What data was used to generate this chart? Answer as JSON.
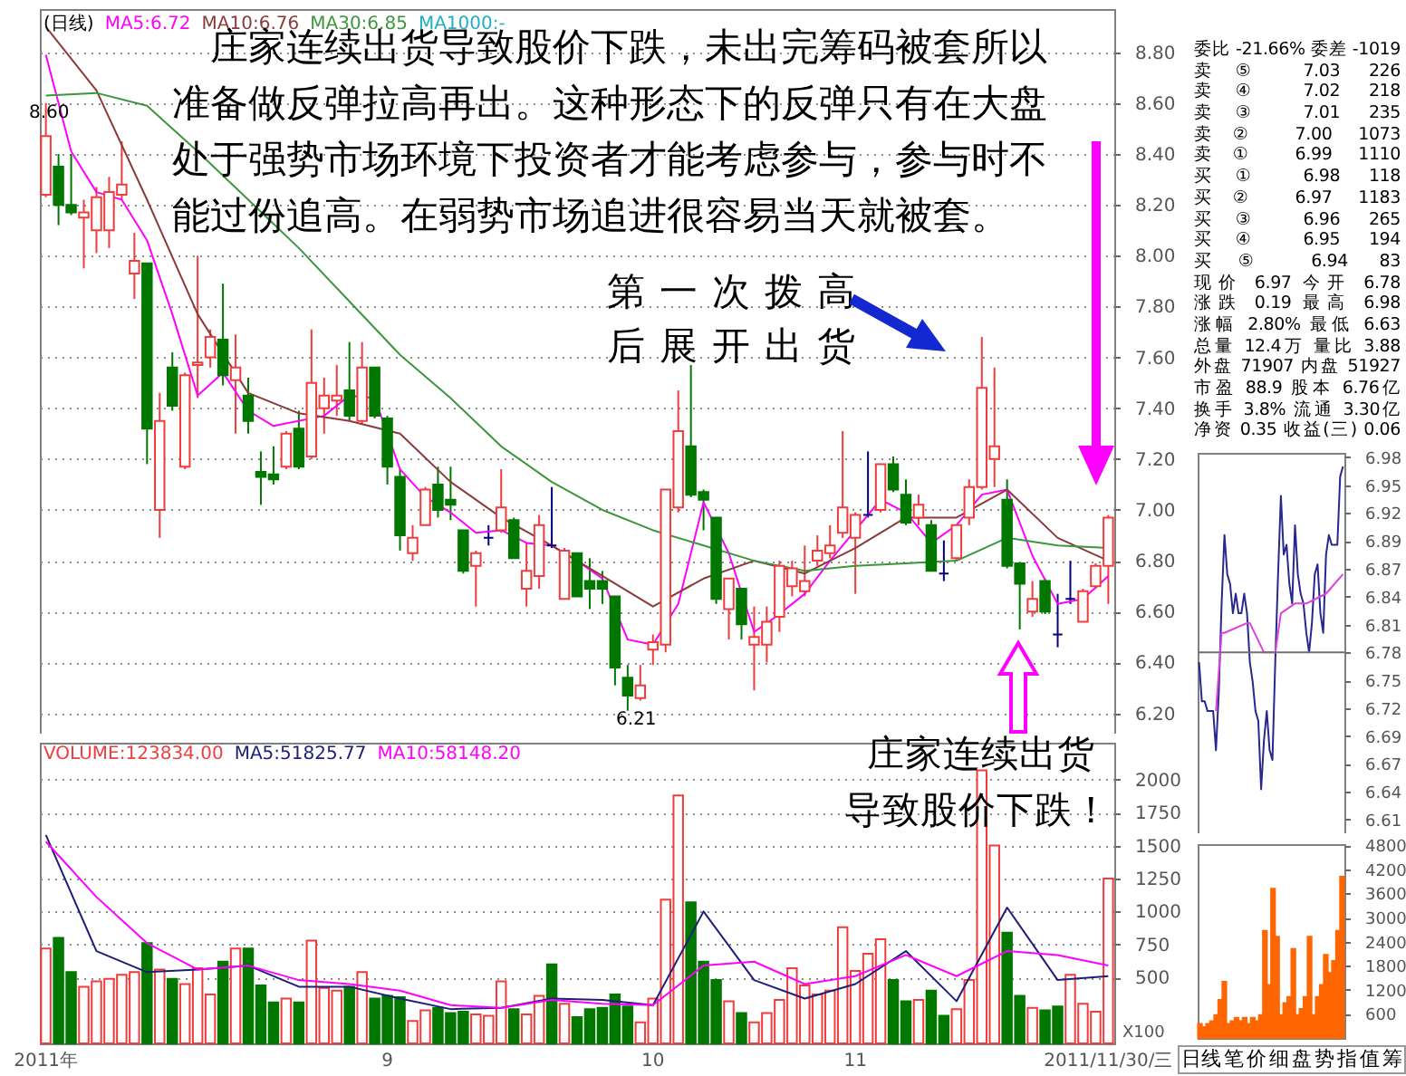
{
  "chart_data": [
    {
      "type": "candlestick",
      "categories": [
        null,
        null,
        null,
        null,
        null,
        null,
        null,
        null,
        null,
        null,
        null,
        null,
        null,
        null,
        null,
        null,
        null,
        null,
        null,
        null,
        null,
        null,
        null,
        null,
        null,
        null,
        null,
        null,
        null,
        null,
        null,
        null,
        null,
        null,
        null,
        null,
        null,
        null,
        null,
        null,
        null,
        null,
        null,
        null,
        null,
        null,
        null,
        null,
        null,
        null,
        null,
        null,
        null,
        null,
        null,
        null,
        null,
        null,
        null,
        null,
        null,
        null,
        null,
        null,
        null,
        null,
        null,
        null,
        null,
        null,
        null,
        null,
        null,
        null,
        null,
        null,
        null,
        null,
        null,
        null,
        null,
        null,
        null,
        null,
        null
      ],
      "ohlc": [
        [
          8.24,
          8.6,
          8.23,
          8.47
        ],
        [
          8.35,
          8.4,
          8.12,
          8.2
        ],
        [
          8.2,
          8.4,
          8.16,
          8.17
        ],
        [
          8.15,
          8.22,
          7.95,
          8.17
        ],
        [
          8.1,
          8.27,
          8.01,
          8.23
        ],
        [
          8.1,
          8.31,
          8.03,
          8.25
        ],
        [
          8.24,
          8.45,
          8.22,
          8.28
        ],
        [
          7.93,
          8.09,
          7.83,
          7.98
        ],
        [
          7.97,
          7.97,
          7.18,
          7.32
        ],
        [
          7.0,
          7.46,
          6.89,
          7.35
        ],
        [
          7.56,
          7.62,
          7.39,
          7.41
        ],
        [
          7.17,
          7.54,
          7.16,
          7.53
        ],
        [
          7.57,
          8.0,
          7.44,
          7.58
        ],
        [
          7.6,
          7.71,
          7.56,
          7.68
        ],
        [
          7.67,
          7.89,
          7.49,
          7.53
        ],
        [
          7.51,
          7.69,
          7.3,
          7.56
        ],
        [
          7.45,
          7.52,
          7.3,
          7.35
        ],
        [
          7.15,
          7.23,
          7.02,
          7.13
        ],
        [
          7.14,
          7.25,
          7.1,
          7.12
        ],
        [
          7.17,
          7.31,
          7.16,
          7.3
        ],
        [
          7.32,
          7.39,
          7.16,
          7.17
        ],
        [
          7.21,
          7.71,
          7.2,
          7.5
        ],
        [
          7.4,
          7.52,
          7.3,
          7.45
        ],
        [
          7.43,
          7.57,
          7.37,
          7.45
        ],
        [
          7.47,
          7.66,
          7.35,
          7.37
        ],
        [
          7.35,
          7.66,
          7.34,
          7.56
        ],
        [
          7.56,
          7.56,
          7.36,
          7.37
        ],
        [
          7.36,
          7.37,
          7.1,
          7.17
        ],
        [
          7.13,
          7.16,
          6.84,
          6.9
        ],
        [
          6.83,
          6.94,
          6.8,
          6.89
        ],
        [
          6.94,
          7.09,
          6.94,
          7.08
        ],
        [
          7.1,
          7.17,
          6.97,
          7.0
        ],
        [
          7.04,
          7.17,
          6.96,
          7.02
        ],
        [
          6.92,
          6.92,
          6.75,
          6.76
        ],
        [
          6.78,
          6.84,
          6.62,
          6.83
        ],
        [
          6.89,
          6.94,
          6.86,
          6.89
        ],
        [
          6.92,
          7.16,
          6.91,
          7.01
        ],
        [
          6.96,
          6.97,
          6.81,
          6.81
        ],
        [
          6.69,
          6.87,
          6.62,
          6.76
        ],
        [
          6.74,
          6.98,
          6.69,
          6.94
        ],
        [
          6.86,
          7.09,
          6.85,
          6.86
        ],
        [
          6.65,
          6.85,
          6.65,
          6.84
        ],
        [
          6.83,
          6.83,
          6.66,
          6.66
        ],
        [
          6.72,
          6.81,
          6.61,
          6.69
        ],
        [
          6.72,
          6.76,
          6.63,
          6.69
        ],
        [
          6.66,
          6.66,
          6.31,
          6.38
        ],
        [
          6.34,
          6.39,
          6.21,
          6.27
        ],
        [
          6.26,
          6.39,
          6.25,
          6.31
        ],
        [
          6.45,
          6.51,
          6.39,
          6.48
        ],
        [
          6.47,
          7.08,
          6.44,
          7.08
        ],
        [
          7.01,
          7.47,
          6.99,
          7.31
        ],
        [
          7.25,
          7.57,
          7.05,
          7.06
        ],
        [
          7.07,
          7.08,
          6.92,
          7.04
        ],
        [
          6.97,
          6.97,
          6.63,
          6.65
        ],
        [
          6.61,
          6.73,
          6.49,
          6.73
        ],
        [
          6.69,
          6.69,
          6.49,
          6.55
        ],
        [
          6.47,
          6.62,
          6.29,
          6.5
        ],
        [
          6.47,
          6.62,
          6.4,
          6.56
        ],
        [
          6.58,
          6.8,
          6.52,
          6.78
        ],
        [
          6.7,
          6.8,
          6.66,
          6.77
        ],
        [
          6.68,
          6.86,
          6.66,
          6.72
        ],
        [
          6.8,
          6.9,
          6.78,
          6.84
        ],
        [
          6.83,
          6.94,
          6.81,
          6.86
        ],
        [
          6.91,
          7.31,
          6.89,
          7.01
        ],
        [
          6.89,
          6.99,
          6.67,
          6.98
        ],
        [
          6.98,
          7.23,
          6.97,
          6.98
        ],
        [
          7.0,
          7.18,
          6.99,
          7.18
        ],
        [
          7.18,
          7.21,
          7.07,
          7.08
        ],
        [
          7.06,
          7.12,
          6.94,
          6.95
        ],
        [
          6.97,
          7.06,
          6.94,
          7.02
        ],
        [
          6.94,
          6.96,
          6.76,
          6.76
        ],
        [
          6.75,
          6.88,
          6.72,
          6.75
        ],
        [
          6.81,
          6.94,
          6.8,
          6.94
        ],
        [
          6.97,
          7.12,
          6.94,
          7.09
        ],
        [
          7.09,
          7.68,
          7.08,
          7.48
        ],
        [
          7.2,
          7.56,
          7.09,
          7.25
        ],
        [
          7.04,
          7.12,
          6.77,
          6.78
        ],
        [
          6.79,
          6.79,
          6.53,
          6.71
        ],
        [
          6.6,
          6.72,
          6.58,
          6.65
        ],
        [
          6.72,
          6.73,
          6.59,
          6.6
        ],
        [
          6.51,
          6.67,
          6.46,
          6.51
        ],
        [
          6.65,
          6.8,
          6.63,
          6.65
        ],
        [
          6.56,
          6.69,
          6.56,
          6.68
        ],
        [
          6.7,
          6.79,
          6.69,
          6.78
        ],
        [
          6.78,
          6.98,
          6.63,
          6.97
        ]
      ],
      "colors": [
        "#f03c3c",
        "#007800",
        "#007800",
        "#f03c3c",
        "#f03c3c",
        "#f03c3c",
        "#f03c3c",
        "#f03c3c",
        "#007800",
        "#f03c3c",
        "#007800",
        "#f03c3c",
        "#f03c3c",
        "#f03c3c",
        "#007800",
        "#f03c3c",
        "#007800",
        "#007800",
        "#007800",
        "#f03c3c",
        "#007800",
        "#f03c3c",
        "#f03c3c",
        "#f03c3c",
        "#007800",
        "#f03c3c",
        "#007800",
        "#007800",
        "#007800",
        "#f03c3c",
        "#f03c3c",
        "#007800",
        "#007800",
        "#007800",
        "#f03c3c",
        "#000080",
        "#f03c3c",
        "#007800",
        "#f03c3c",
        "#f03c3c",
        "#000080",
        "#f03c3c",
        "#007800",
        "#007800",
        "#007800",
        "#007800",
        "#007800",
        "#f03c3c",
        "#f03c3c",
        "#f03c3c",
        "#f03c3c",
        "#007800",
        "#007800",
        "#007800",
        "#f03c3c",
        "#007800",
        "#f03c3c",
        "#f03c3c",
        "#f03c3c",
        "#f03c3c",
        "#f03c3c",
        "#f03c3c",
        "#f03c3c",
        "#f03c3c",
        "#f03c3c",
        "#000080",
        "#f03c3c",
        "#007800",
        "#007800",
        "#f03c3c",
        "#007800",
        "#000080",
        "#f03c3c",
        "#f03c3c",
        "#f03c3c",
        "#f03c3c",
        "#007800",
        "#007800",
        "#f03c3c",
        "#007800",
        "#000080",
        "#000080",
        "#f03c3c",
        "#f03c3c",
        "#f03c3c"
      ],
      "series": [
        {
          "name": "MA5:6.72",
          "type": "line",
          "color": "#ff00ff",
          "values": [
            8.79,
            null,
            8.41,
            null,
            8.25,
            null,
            8.22,
            null,
            8.06,
            null,
            7.77,
            null,
            7.45,
            null,
            7.54,
            null,
            7.39,
            null,
            7.33,
            null,
            null,
            null,
            7.37,
            null,
            7.45,
            null,
            7.44,
            null,
            7.16,
            null,
            7.05,
            null,
            6.99,
            null,
            6.91,
            null,
            6.92,
            null,
            6.87,
            null,
            6.86,
            null,
            6.8,
            null,
            6.73,
            null,
            6.49,
            null,
            6.47,
            null,
            6.63,
            null,
            7.03,
            null,
            6.83,
            null,
            6.52,
            null,
            6.59,
            null,
            6.67,
            null,
            6.8,
            null,
            6.92,
            null,
            7.04,
            null,
            6.99,
            null,
            6.87,
            null,
            6.94,
            null,
            7.06,
            null,
            7.08,
            null,
            6.82,
            null,
            6.63,
            null,
            6.65,
            null,
            6.74
          ]
        },
        {
          "name": "MA10:6.76",
          "type": "line",
          "color": "#8b3a3a",
          "values": [
            8.9,
            null,
            null,
            null,
            8.65,
            null,
            null,
            null,
            8.22,
            null,
            null,
            null,
            7.77,
            null,
            null,
            null,
            7.46,
            null,
            null,
            null,
            7.38,
            null,
            null,
            null,
            7.35,
            null,
            null,
            null,
            7.3,
            null,
            null,
            null,
            7.11,
            null,
            null,
            null,
            6.97,
            null,
            null,
            null,
            6.86,
            null,
            null,
            null,
            6.74,
            null,
            null,
            null,
            6.62,
            null,
            null,
            null,
            6.73,
            null,
            null,
            null,
            6.8,
            null,
            null,
            null,
            6.75,
            null,
            null,
            null,
            6.85,
            null,
            null,
            null,
            6.97,
            null,
            null,
            null,
            6.97,
            null,
            null,
            null,
            7.08,
            null,
            null,
            null,
            6.89,
            null,
            null,
            null,
            6.8
          ]
        },
        {
          "name": "MA30:6.85",
          "type": "line",
          "color": "#3c963c",
          "values": [
            8.63,
            null,
            null,
            null,
            8.64,
            null,
            null,
            null,
            8.59,
            null,
            null,
            null,
            8.41,
            null,
            null,
            null,
            8.22,
            null,
            null,
            null,
            8.03,
            null,
            null,
            null,
            7.82,
            null,
            null,
            null,
            7.61,
            null,
            null,
            null,
            7.44,
            null,
            null,
            null,
            7.25,
            null,
            null,
            null,
            7.11,
            null,
            null,
            null,
            7.0,
            null,
            null,
            null,
            6.92,
            null,
            null,
            null,
            6.86,
            null,
            null,
            null,
            6.8,
            null,
            null,
            null,
            6.76,
            null,
            null,
            null,
            6.78,
            null,
            null,
            null,
            6.79,
            null,
            null,
            null,
            6.8,
            null,
            null,
            null,
            6.89,
            null,
            null,
            null,
            6.86,
            null,
            null,
            null,
            6.85
          ]
        }
      ],
      "ylim": [
        6.12,
        8.97
      ],
      "yticks": [
        {
          "value": 6.2,
          "label": "6.20"
        },
        {
          "value": 6.4,
          "label": "6.40"
        },
        {
          "value": 6.6,
          "label": "6.60"
        },
        {
          "value": 6.8,
          "label": "6.80"
        },
        {
          "value": 7.0,
          "label": "7.00"
        },
        {
          "value": 7.2,
          "label": "7.20"
        },
        {
          "value": 7.4,
          "label": "7.40"
        },
        {
          "value": 7.6,
          "label": "7.60"
        },
        {
          "value": 7.8,
          "label": "7.80"
        },
        {
          "value": 8.0,
          "label": "8.00"
        },
        {
          "value": 8.2,
          "label": "8.20"
        },
        {
          "value": 8.4,
          "label": "8.40"
        },
        {
          "value": 8.6,
          "label": "8.60"
        },
        {
          "value": 8.8,
          "label": "8.80"
        }
      ],
      "grid": "y",
      "tick_labels": "y",
      "legend": "top left",
      "annotations": [
        "(日线)",
        "MA1000:-",
        "庄家连续出货导致股价下跌，未出完筹码被套所以准备做反弹拉高再出。这种形态下的反弹只有在大盘处于强势市场环境下投资者才能考虑参与，参与时不能过份追高。在弱势市场追进很容易当天就被套。",
        "第一次拨高后展开出货",
        "8.60",
        "6.21"
      ]
    },
    {
      "type": "bar",
      "categories": [
        "2011年",
        null,
        null,
        null,
        null,
        null,
        null,
        null,
        null,
        null,
        null,
        null,
        null,
        null,
        null,
        null,
        null,
        null,
        null,
        null,
        null,
        null,
        null,
        null,
        null,
        null,
        null,
        "9",
        null,
        null,
        null,
        null,
        null,
        null,
        null,
        null,
        null,
        null,
        null,
        null,
        null,
        null,
        null,
        null,
        null,
        null,
        null,
        null,
        "10",
        null,
        null,
        null,
        null,
        null,
        null,
        null,
        null,
        null,
        null,
        null,
        null,
        null,
        null,
        null,
        "11",
        null,
        null,
        null,
        null,
        null,
        null,
        null,
        null,
        null,
        null,
        null,
        null,
        null,
        null,
        null,
        null,
        null,
        null,
        null,
        "2011/11/30/三"
      ],
      "series": [
        {
          "name": "VOLUME:123834.00",
          "type": "bar",
          "colors": [
            "#f03c3c",
            "#007800",
            "#007800",
            "#f03c3c",
            "#f03c3c",
            "#f03c3c",
            "#f03c3c",
            "#f03c3c",
            "#007800",
            "#f03c3c",
            "#007800",
            "#f03c3c",
            "#f03c3c",
            "#f03c3c",
            "#007800",
            "#f03c3c",
            "#007800",
            "#007800",
            "#007800",
            "#f03c3c",
            "#007800",
            "#f03c3c",
            "#f03c3c",
            "#f03c3c",
            "#007800",
            "#f03c3c",
            "#007800",
            "#007800",
            "#007800",
            "#f03c3c",
            "#f03c3c",
            "#007800",
            "#007800",
            "#007800",
            "#f03c3c",
            "#f03c3c",
            "#f03c3c",
            "#007800",
            "#f03c3c",
            "#f03c3c",
            "#007800",
            "#f03c3c",
            "#007800",
            "#007800",
            "#007800",
            "#007800",
            "#007800",
            "#f03c3c",
            "#f03c3c",
            "#f03c3c",
            "#f03c3c",
            "#007800",
            "#007800",
            "#007800",
            "#f03c3c",
            "#007800",
            "#f03c3c",
            "#f03c3c",
            "#f03c3c",
            "#f03c3c",
            "#f03c3c",
            "#f03c3c",
            "#f03c3c",
            "#f03c3c",
            "#f03c3c",
            "#f03c3c",
            "#f03c3c",
            "#007800",
            "#007800",
            "#f03c3c",
            "#007800",
            "#007800",
            "#f03c3c",
            "#f03c3c",
            "#f03c3c",
            "#f03c3c",
            "#007800",
            "#007800",
            "#f03c3c",
            "#007800",
            "#007800",
            "#f03c3c",
            "#f03c3c",
            "#f03c3c",
            "#f03c3c"
          ],
          "values": [
            720,
            800,
            540,
            430,
            470,
            490,
            520,
            540,
            760,
            560,
            490,
            450,
            570,
            370,
            620,
            720,
            720,
            440,
            310,
            340,
            310,
            780,
            420,
            400,
            430,
            540,
            340,
            360,
            350,
            170,
            250,
            270,
            230,
            240,
            220,
            210,
            470,
            260,
            220,
            360,
            600,
            300,
            200,
            260,
            270,
            370,
            280,
            160,
            340,
            1090,
            1880,
            1070,
            620,
            480,
            320,
            230,
            160,
            230,
            330,
            570,
            440,
            370,
            400,
            880,
            550,
            680,
            790,
            480,
            320,
            330,
            400,
            210,
            260,
            480,
            2070,
            1500,
            840,
            360,
            270,
            250,
            280,
            520,
            300,
            240,
            1250
          ]
        },
        {
          "name": "MA5:51825.77",
          "type": "line",
          "color": "#1e1e78",
          "values": [
            1580,
            null,
            null,
            null,
            700,
            null,
            null,
            null,
            540,
            null,
            null,
            null,
            560,
            null,
            null,
            null,
            590,
            null,
            null,
            null,
            430,
            null,
            null,
            null,
            430,
            null,
            null,
            null,
            340,
            null,
            null,
            null,
            260,
            null,
            null,
            null,
            270,
            null,
            null,
            null,
            340,
            null,
            null,
            null,
            330,
            null,
            null,
            null,
            290,
            null,
            null,
            null,
            1000,
            null,
            null,
            null,
            480,
            null,
            null,
            null,
            340,
            null,
            null,
            null,
            450,
            null,
            null,
            null,
            700,
            null,
            null,
            null,
            320,
            null,
            null,
            null,
            1030,
            null,
            null,
            null,
            480,
            null,
            null,
            null,
            510
          ]
        },
        {
          "name": "MA10:58148.20",
          "type": "line",
          "color": "#ff00ff",
          "values": [
            1530,
            null,
            null,
            null,
            1110,
            null,
            null,
            null,
            760,
            null,
            null,
            null,
            560,
            null,
            null,
            null,
            590,
            null,
            null,
            null,
            480,
            null,
            null,
            null,
            450,
            null,
            null,
            null,
            400,
            null,
            null,
            null,
            290,
            null,
            null,
            null,
            270,
            null,
            null,
            null,
            330,
            null,
            null,
            null,
            300,
            null,
            null,
            null,
            290,
            null,
            null,
            null,
            590,
            null,
            null,
            null,
            620,
            null,
            null,
            null,
            450,
            null,
            null,
            null,
            510,
            null,
            null,
            null,
            670,
            null,
            null,
            null,
            510,
            null,
            null,
            null,
            700,
            null,
            null,
            null,
            670,
            null,
            null,
            null,
            590
          ]
        }
      ],
      "ylim": [
        0,
        2280
      ],
      "yticks": [
        500,
        750,
        1000,
        1250,
        1500,
        1750,
        2000
      ],
      "ylabel": "X100",
      "grid": "y",
      "legend": "top left",
      "annotations": [
        "庄家连续出货导致股价下跌！"
      ]
    },
    {
      "type": "other",
      "annotations": [
        "委比 -21.66% 委差 -1019",
        "卖⑤ 7.03 226",
        "卖④ 7.02 218",
        "卖③ 7.01 235",
        "卖② 7.00 1073",
        "卖① 6.99 1110",
        "买① 6.98 118",
        "买② 6.97 1183",
        "买③ 6.96 265",
        "买④ 6.95 194",
        "买⑤ 6.94 83",
        "现价 6.97 今开 6.78",
        "涨跌 0.19 最高 6.98",
        "涨幅 2.80% 最低 6.63",
        "总量 12.4万 量比 3.88",
        "外盘 71907 内盘 51927",
        "市盈 88.9 股本 6.76亿",
        "换手 3.8% 流通 3.30亿",
        "净资 0.35 收益(三) 0.06"
      ]
    },
    {
      "type": "line",
      "categories": [
        null,
        null,
        null,
        null,
        null,
        null,
        null,
        null,
        null,
        null,
        null,
        null,
        null,
        null,
        null,
        null,
        null,
        null,
        null,
        null,
        null,
        null,
        null,
        null,
        null,
        null,
        null,
        null,
        null,
        null,
        null,
        null,
        null,
        null,
        null,
        null,
        null,
        null,
        null,
        null,
        null,
        null,
        null,
        null,
        null,
        null,
        null,
        null,
        null,
        null,
        null,
        null
      ],
      "series": [
        {
          "color": "#28288c",
          "values": [
            6.77,
            6.73,
            6.73,
            6.72,
            6.72,
            6.72,
            6.68,
            6.74,
            6.83,
            6.9,
            6.86,
            6.85,
            6.82,
            6.84,
            6.82,
            6.82,
            6.84,
            6.82,
            6.77,
            6.75,
            6.72,
            6.71,
            6.64,
            6.69,
            6.72,
            6.68,
            6.67,
            6.77,
            6.86,
            6.94,
            6.88,
            6.89,
            6.85,
            6.83,
            6.91,
            6.86,
            6.84,
            6.83,
            6.8,
            6.78,
            6.81,
            6.86,
            6.87,
            6.82,
            6.8,
            6.88,
            6.9,
            6.89,
            6.89,
            6.89,
            6.96,
            6.97
          ]
        },
        {
          "color": "#e040e0",
          "values": [
            null,
            null,
            null,
            null,
            null,
            null,
            6.72,
            null,
            6.8,
            6.8,
            null,
            null,
            null,
            null,
            null,
            null,
            null,
            6.81,
            6.81,
            null,
            null,
            null,
            null,
            6.78,
            null,
            null,
            null,
            6.78,
            null,
            6.82,
            null,
            null,
            null,
            null,
            6.83,
            null,
            null,
            null,
            6.83,
            null,
            null,
            null,
            null,
            null,
            null,
            6.84,
            null,
            null,
            null,
            null,
            null,
            6.86
          ]
        }
      ],
      "ylim": [
        6.584,
        6.984
      ],
      "yticks": [
        {
          "value": 6.9795,
          "label": "6.98"
        },
        {
          "value": 6.951,
          "label": "6.95"
        },
        {
          "value": 6.9225,
          "label": "6.92"
        },
        {
          "value": 6.894,
          "label": "6.89"
        },
        {
          "value": 6.8655,
          "label": "6.87"
        },
        {
          "value": 6.837,
          "label": "6.84"
        },
        {
          "value": 6.8085,
          "label": "6.81"
        },
        {
          "value": 6.78,
          "label": "6.78"
        },
        {
          "value": 6.7515,
          "label": "6.75"
        },
        {
          "value": 6.723,
          "label": "6.72"
        },
        {
          "value": 6.6945,
          "label": "6.69"
        },
        {
          "value": 6.666,
          "label": "6.67"
        },
        {
          "value": 6.6375,
          "label": "6.64"
        },
        {
          "value": 6.609,
          "label": "6.61"
        }
      ],
      "tick_labels": "y",
      "ref_lines": [
        {
          "axis": "y",
          "value": 6.78,
          "color": "#707070"
        }
      ]
    },
    {
      "type": "bar",
      "categories": [
        null,
        null,
        null,
        null,
        null,
        null,
        null,
        null,
        null,
        null,
        null,
        null,
        null,
        null,
        null,
        null,
        null,
        null,
        null,
        null,
        null,
        null,
        null,
        null,
        null,
        null,
        null,
        null,
        null,
        null,
        null,
        null,
        null,
        null,
        null,
        null
      ],
      "values": [
        350,
        270,
        350,
        420,
        570,
        950,
        1400,
        350,
        420,
        500,
        420,
        500,
        350,
        500,
        420,
        570,
        2670,
        1320,
        3720,
        2520,
        570,
        870,
        1020,
        2220,
        570,
        720,
        1020,
        2520,
        570,
        1020,
        1320,
        2070,
        1620,
        1920,
        2670,
        4020
      ],
      "color": "#ff6600",
      "ylim": [
        0,
        4830
      ],
      "yticks": [
        600,
        1200,
        1800,
        2400,
        3000,
        3600,
        4200,
        4800
      ],
      "tick_labels": "y"
    },
    {
      "type": "other",
      "annotations": [
        "日线",
        "笔",
        "价",
        "细",
        "盘",
        "势",
        "指",
        "值",
        "筹"
      ]
    }
  ]
}
